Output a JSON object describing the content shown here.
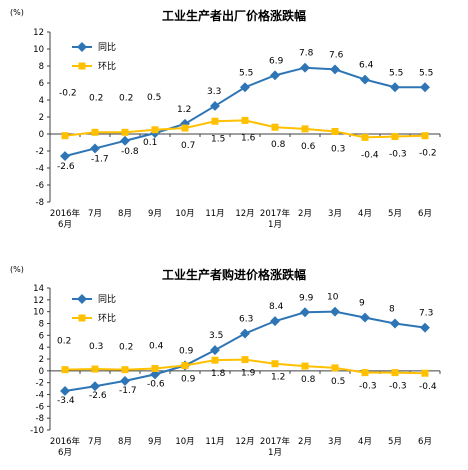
{
  "colors": {
    "yoy": "#2e75b6",
    "mom": "#ffc000",
    "grid": "#d9d9d9",
    "axis": "#404040"
  },
  "chart_data": [
    {
      "type": "line",
      "title": "工业生产者出厂价格涨跌幅",
      "ylabel": "(%)",
      "ylim": [
        -8,
        12
      ],
      "yticks": [
        -8,
        -6,
        -4,
        -2,
        0,
        2,
        4,
        6,
        8,
        10,
        12
      ],
      "categories": [
        [
          "2016年",
          "6月"
        ],
        [
          "7月"
        ],
        [
          "8月"
        ],
        [
          "9月"
        ],
        [
          "10月"
        ],
        [
          "11月"
        ],
        [
          "12月"
        ],
        [
          "2017年",
          "1月"
        ],
        [
          "2月"
        ],
        [
          "3月"
        ],
        [
          "4月"
        ],
        [
          "5月"
        ],
        [
          "6月"
        ]
      ],
      "series": [
        {
          "name": "同比",
          "color": "#2e75b6",
          "values": [
            -2.6,
            -1.7,
            -0.8,
            0.1,
            1.2,
            3.3,
            5.5,
            6.9,
            7.8,
            7.6,
            6.4,
            5.5,
            5.5
          ]
        },
        {
          "name": "环比",
          "color": "#ffc000",
          "values": [
            -0.2,
            0.2,
            0.2,
            0.5,
            0.7,
            1.5,
            1.6,
            0.8,
            0.6,
            0.3,
            -0.4,
            -0.3,
            -0.2
          ]
        }
      ],
      "legend": "top-left",
      "grid": false
    },
    {
      "type": "line",
      "title": "工业生产者购进价格涨跌幅",
      "ylabel": "(%)",
      "ylim": [
        -10,
        14
      ],
      "yticks": [
        -10,
        -8,
        -6,
        -4,
        -2,
        0,
        2,
        4,
        6,
        8,
        10,
        12,
        14
      ],
      "categories": [
        [
          "2016年",
          "6月"
        ],
        [
          "7月"
        ],
        [
          "8月"
        ],
        [
          "9月"
        ],
        [
          "10月"
        ],
        [
          "11月"
        ],
        [
          "12月"
        ],
        [
          "2017年",
          "1月"
        ],
        [
          "2月"
        ],
        [
          "3月"
        ],
        [
          "4月"
        ],
        [
          "5月"
        ],
        [
          "6月"
        ]
      ],
      "series": [
        {
          "name": "同比",
          "color": "#2e75b6",
          "values": [
            -3.4,
            -2.6,
            -1.7,
            -0.6,
            0.9,
            3.5,
            6.3,
            8.4,
            9.9,
            10.0,
            9.0,
            8.0,
            7.3
          ]
        },
        {
          "name": "环比",
          "color": "#ffc000",
          "values": [
            0.2,
            0.3,
            0.2,
            0.4,
            0.9,
            1.8,
            1.9,
            1.2,
            0.8,
            0.5,
            -0.3,
            -0.3,
            -0.4
          ]
        }
      ],
      "legend": "top-left",
      "grid": false
    }
  ]
}
